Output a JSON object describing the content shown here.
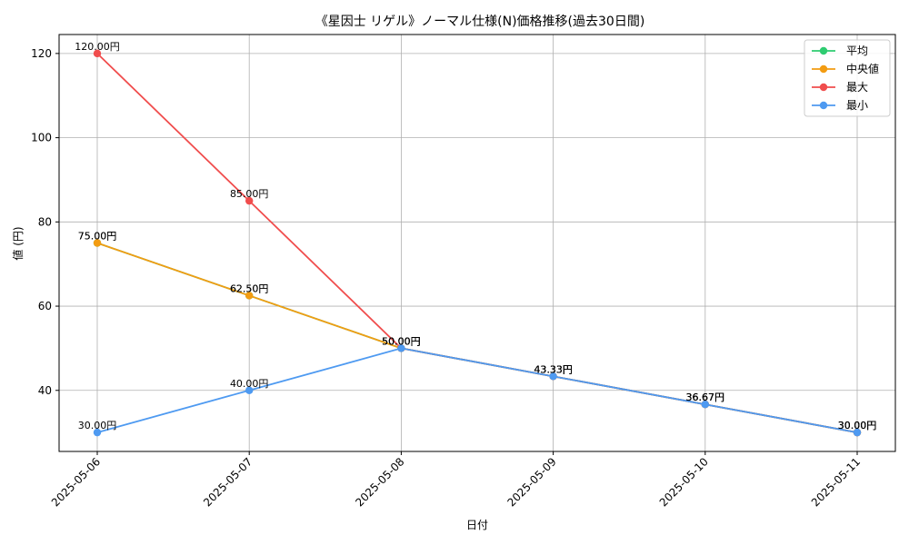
{
  "chart_data": {
    "type": "line",
    "title": "《星因士 リゲル》ノーマル仕様(N)価格推移(過去30日間)",
    "xlabel": "日付",
    "ylabel": "値 (円)",
    "categories": [
      "2025-05-06",
      "2025-05-07",
      "2025-05-08",
      "2025-05-09",
      "2025-05-10",
      "2025-05-11"
    ],
    "ylim": [
      25.5,
      124.5
    ],
    "yticks": [
      40,
      60,
      80,
      100,
      120
    ],
    "grid": true,
    "legend_position": "top-right",
    "series": [
      {
        "name": "平均",
        "color": "#2ecc71",
        "values": [
          75.0,
          62.5,
          50.0,
          43.33,
          36.67,
          30.0
        ],
        "labels": [
          "75.00円",
          "62.50円",
          "50.00円",
          "43.33円",
          "36.67円",
          "30.00円"
        ]
      },
      {
        "name": "中央値",
        "color": "#f39c12",
        "values": [
          75.0,
          62.5,
          50.0,
          43.33,
          36.67,
          30.0
        ],
        "labels": [
          "75.00円",
          "62.50円",
          "50.00円",
          "43.33円",
          "36.67円",
          "30.00円"
        ]
      },
      {
        "name": "最大",
        "color": "#f04d4d",
        "values": [
          120.0,
          85.0,
          50.0,
          43.33,
          36.67,
          30.0
        ],
        "labels": [
          "120.00円",
          "85.00円",
          "50.00円",
          "43.33円",
          "36.67円",
          "30.00円"
        ]
      },
      {
        "name": "最小",
        "color": "#4e9af1",
        "values": [
          30.0,
          40.0,
          50.0,
          43.33,
          36.67,
          30.0
        ],
        "labels": [
          "30.00円",
          "40.00円",
          "50.00円",
          "43.33円",
          "36.67円",
          "30.00円"
        ]
      }
    ]
  }
}
